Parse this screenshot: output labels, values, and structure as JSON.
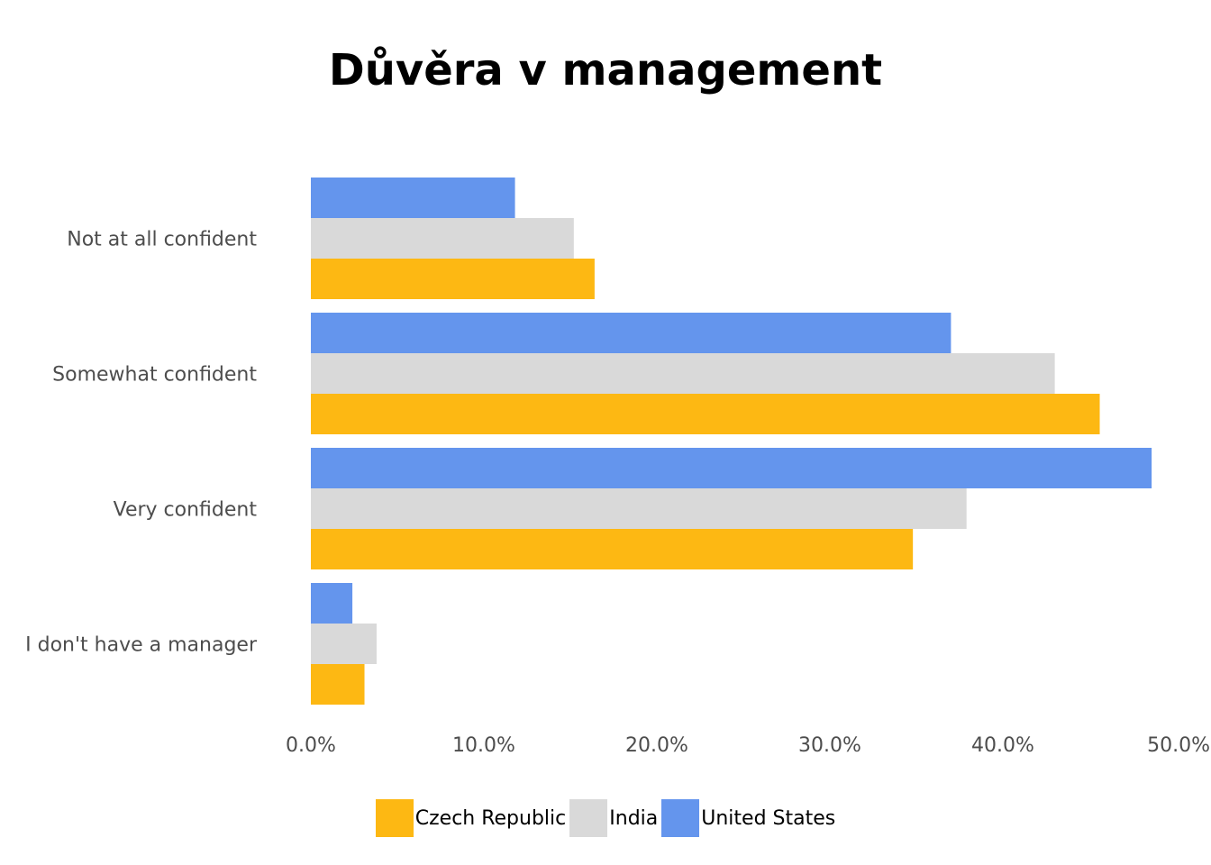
{
  "chart_data": {
    "type": "bar",
    "orientation": "horizontal",
    "title": "Důvěra v management",
    "xlabel": "",
    "ylabel": "",
    "categories": [
      "Not at all confident",
      "Somewhat confident",
      "Very confident",
      "I don't have a manager"
    ],
    "series": [
      {
        "name": "Czech Republic",
        "color": "#FDB813",
        "values": [
          16.4,
          45.6,
          34.8,
          3.1
        ]
      },
      {
        "name": "India",
        "color": "#D9D9D9",
        "values": [
          15.2,
          43.0,
          37.9,
          3.8
        ]
      },
      {
        "name": "United States",
        "color": "#6495ED",
        "values": [
          11.8,
          37.0,
          48.6,
          2.4
        ]
      }
    ],
    "xlim": [
      0,
      50
    ],
    "xticks": [
      "0.0%",
      "10.0%",
      "20.0%",
      "30.0%",
      "40.0%",
      "50.0%"
    ],
    "grid": false,
    "legend_position": "bottom"
  }
}
